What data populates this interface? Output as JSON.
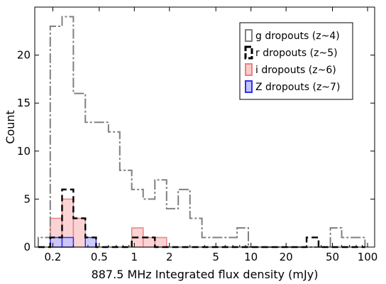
{
  "chart_data": {
    "type": "histogram",
    "xlabel": "887.5 MHz Integrated flux density (mJy)",
    "ylabel": "Count",
    "xscale": "log",
    "xlim": [
      0.14,
      115
    ],
    "ylim": [
      0,
      25
    ],
    "grid": false,
    "legend_position": "top-right",
    "x_ticks": [
      {
        "value": 0.2,
        "label": "0.2"
      },
      {
        "value": 0.5,
        "label": "0.5"
      },
      {
        "value": 1,
        "label": "1"
      },
      {
        "value": 2,
        "label": "2"
      },
      {
        "value": 5,
        "label": "5"
      },
      {
        "value": 10,
        "label": "10"
      },
      {
        "value": 20,
        "label": "20"
      },
      {
        "value": 50,
        "label": "50"
      },
      {
        "value": 100,
        "label": "100"
      }
    ],
    "y_ticks": [
      0,
      5,
      10,
      15,
      20
    ],
    "bin_edges": [
      0.15,
      0.19,
      0.24,
      0.3,
      0.38,
      0.47,
      0.6,
      0.75,
      0.95,
      1.19,
      1.5,
      1.89,
      2.38,
      3.0,
      3.8,
      4.8,
      6.0,
      7.6,
      9.5,
      12.0,
      15.0,
      19.0,
      24.0,
      30.0,
      38.0,
      48.0,
      60.0,
      75.0,
      95.0
    ],
    "series": [
      {
        "name": "g dropouts (z~4)",
        "color": "#808080",
        "style": "step",
        "dash": "mixed",
        "counts": [
          1,
          23,
          24,
          16,
          13,
          13,
          12,
          8,
          6,
          5,
          7,
          4,
          6,
          3,
          1,
          1,
          1,
          2,
          0,
          0,
          0,
          0,
          0,
          0,
          0,
          2,
          1,
          1
        ]
      },
      {
        "name": "r dropouts (z~5)",
        "color": "#000000",
        "style": "step",
        "dash": "dashed",
        "counts": [
          0,
          1,
          6,
          3,
          1,
          0,
          0,
          0,
          1,
          1,
          0,
          0,
          0,
          0,
          0,
          0,
          0,
          0,
          0,
          0,
          0,
          0,
          0,
          1,
          0,
          0,
          0,
          0
        ]
      },
      {
        "name": "i dropouts (z~6)",
        "color": "#f08080",
        "fill": "#f9cccc",
        "style": "filled",
        "counts": [
          0,
          3,
          5,
          3,
          0,
          0,
          0,
          0,
          2,
          1,
          1,
          0,
          0,
          0,
          0,
          0,
          0,
          0,
          0,
          0,
          0,
          0,
          0,
          0,
          0,
          0,
          0,
          0
        ]
      },
      {
        "name": "Z dropouts (z~7)",
        "color": "#2f2ff0",
        "fill": "#c3c3fb",
        "style": "filled",
        "counts": [
          0,
          1,
          1,
          0,
          1,
          0,
          0,
          0,
          0,
          0,
          0,
          0,
          0,
          0,
          0,
          0,
          0,
          0,
          0,
          0,
          0,
          0,
          0,
          0,
          0,
          0,
          0,
          0
        ]
      }
    ]
  }
}
